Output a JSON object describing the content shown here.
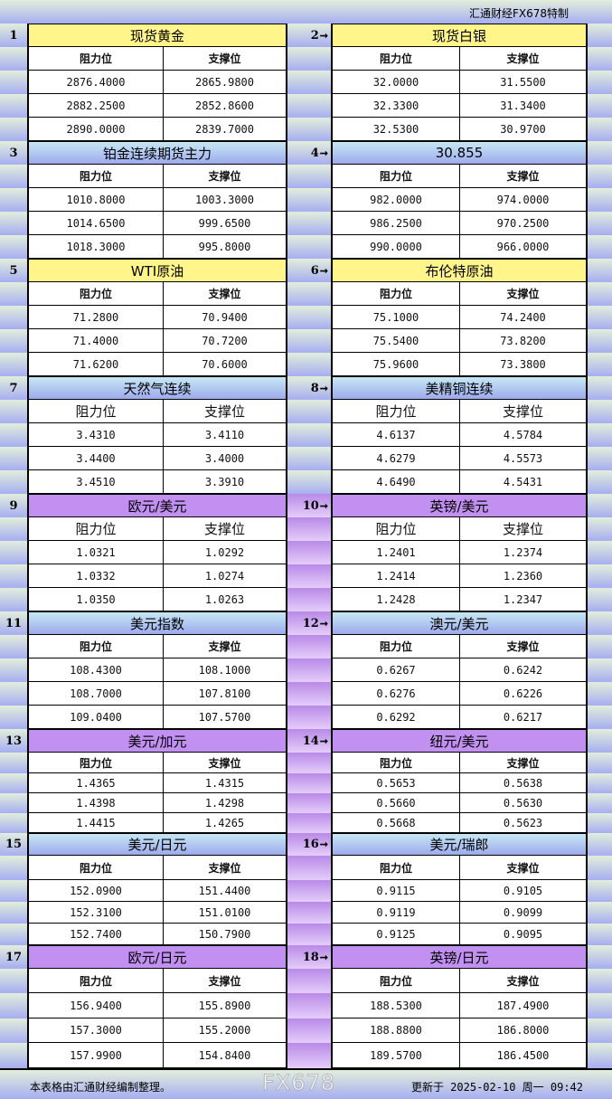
{
  "header": {
    "brand": "汇通财经FX678特制"
  },
  "labels": {
    "resistance": "阻力位",
    "support": "支撑位"
  },
  "colors": {
    "yellow": "#fff58a",
    "blue": "#9eaaec",
    "purple": "#c290f0"
  },
  "sections": [
    {
      "num": "1",
      "title": "现货黄金",
      "color": "yellow",
      "rows": [
        [
          "2876.4000",
          "2865.9800"
        ],
        [
          "2882.2500",
          "2852.8600"
        ],
        [
          "2890.0000",
          "2839.7000"
        ]
      ]
    },
    {
      "num": "2",
      "title": "现货白银",
      "color": "yellow",
      "rows": [
        [
          "32.0000",
          "31.5500"
        ],
        [
          "32.3300",
          "31.3400"
        ],
        [
          "32.5300",
          "30.9700"
        ]
      ]
    },
    {
      "num": "3",
      "title": "铂金连续期货主力",
      "color": "blue",
      "rows": [
        [
          "1010.8000",
          "1003.3000"
        ],
        [
          "1014.6500",
          "999.6500"
        ],
        [
          "1018.3000",
          "995.8000"
        ]
      ]
    },
    {
      "num": "4",
      "title": "30.855",
      "color": "blue",
      "rows": [
        [
          "982.0000",
          "974.0000"
        ],
        [
          "986.2500",
          "970.2500"
        ],
        [
          "990.0000",
          "966.0000"
        ]
      ]
    },
    {
      "num": "5",
      "title": "WTI原油",
      "color": "yellow",
      "rows": [
        [
          "71.2800",
          "70.9400"
        ],
        [
          "71.4000",
          "70.7200"
        ],
        [
          "71.6200",
          "70.6000"
        ]
      ]
    },
    {
      "num": "6",
      "title": "布伦特原油",
      "color": "yellow",
      "rows": [
        [
          "75.1000",
          "74.2400"
        ],
        [
          "75.5400",
          "73.8200"
        ],
        [
          "75.9600",
          "73.3800"
        ]
      ]
    },
    {
      "num": "7",
      "title": "天然气连续",
      "color": "blue",
      "rows": [
        [
          "3.4310",
          "3.4110"
        ],
        [
          "3.4400",
          "3.4000"
        ],
        [
          "3.4510",
          "3.3910"
        ]
      ]
    },
    {
      "num": "8",
      "title": "美精铜连续",
      "color": "blue",
      "rows": [
        [
          "4.6137",
          "4.5784"
        ],
        [
          "4.6279",
          "4.5573"
        ],
        [
          "4.6490",
          "4.5431"
        ]
      ]
    },
    {
      "num": "9",
      "title": "欧元/美元",
      "color": "purple",
      "rows": [
        [
          "1.0321",
          "1.0292"
        ],
        [
          "1.0332",
          "1.0274"
        ],
        [
          "1.0350",
          "1.0263"
        ]
      ]
    },
    {
      "num": "10",
      "title": "英镑/美元",
      "color": "purple",
      "rows": [
        [
          "1.2401",
          "1.2374"
        ],
        [
          "1.2414",
          "1.2360"
        ],
        [
          "1.2428",
          "1.2347"
        ]
      ]
    },
    {
      "num": "11",
      "title": "美元指数",
      "color": "blue",
      "rows": [
        [
          "108.4300",
          "108.1000"
        ],
        [
          "108.7000",
          "107.8100"
        ],
        [
          "109.0400",
          "107.5700"
        ]
      ]
    },
    {
      "num": "12",
      "title": "澳元/美元",
      "color": "blue",
      "rows": [
        [
          "0.6267",
          "0.6242"
        ],
        [
          "0.6276",
          "0.6226"
        ],
        [
          "0.6292",
          "0.6217"
        ]
      ]
    },
    {
      "num": "13",
      "title": "美元/加元",
      "color": "purple",
      "rows": [
        [
          "1.4365",
          "1.4315"
        ],
        [
          "1.4398",
          "1.4298"
        ],
        [
          "1.4415",
          "1.4265"
        ]
      ]
    },
    {
      "num": "14",
      "title": "纽元/美元",
      "color": "purple",
      "rows": [
        [
          "0.5653",
          "0.5638"
        ],
        [
          "0.5660",
          "0.5630"
        ],
        [
          "0.5668",
          "0.5623"
        ]
      ]
    },
    {
      "num": "15",
      "title": "美元/日元",
      "color": "blue",
      "rows": [
        [
          "152.0900",
          "151.4400"
        ],
        [
          "152.3100",
          "151.0100"
        ],
        [
          "152.7400",
          "150.7900"
        ]
      ]
    },
    {
      "num": "16",
      "title": "美元/瑞郎",
      "color": "blue",
      "rows": [
        [
          "0.9115",
          "0.9105"
        ],
        [
          "0.9119",
          "0.9099"
        ],
        [
          "0.9125",
          "0.9095"
        ]
      ]
    },
    {
      "num": "17",
      "title": "欧元/日元",
      "color": "purple",
      "rows": [
        [
          "156.9400",
          "155.8900"
        ],
        [
          "157.3000",
          "155.2000"
        ],
        [
          "157.9900",
          "154.8400"
        ]
      ]
    },
    {
      "num": "18",
      "title": "英镑/日元",
      "color": "purple",
      "rows": [
        [
          "188.5300",
          "187.4900"
        ],
        [
          "188.8800",
          "186.8000"
        ],
        [
          "189.5700",
          "186.4500"
        ]
      ]
    }
  ],
  "footer": {
    "note": "本表格由汇通财经编制整理。",
    "updated": "更新于 2025-02-10 周一 09:42"
  },
  "watermark": "FX678"
}
